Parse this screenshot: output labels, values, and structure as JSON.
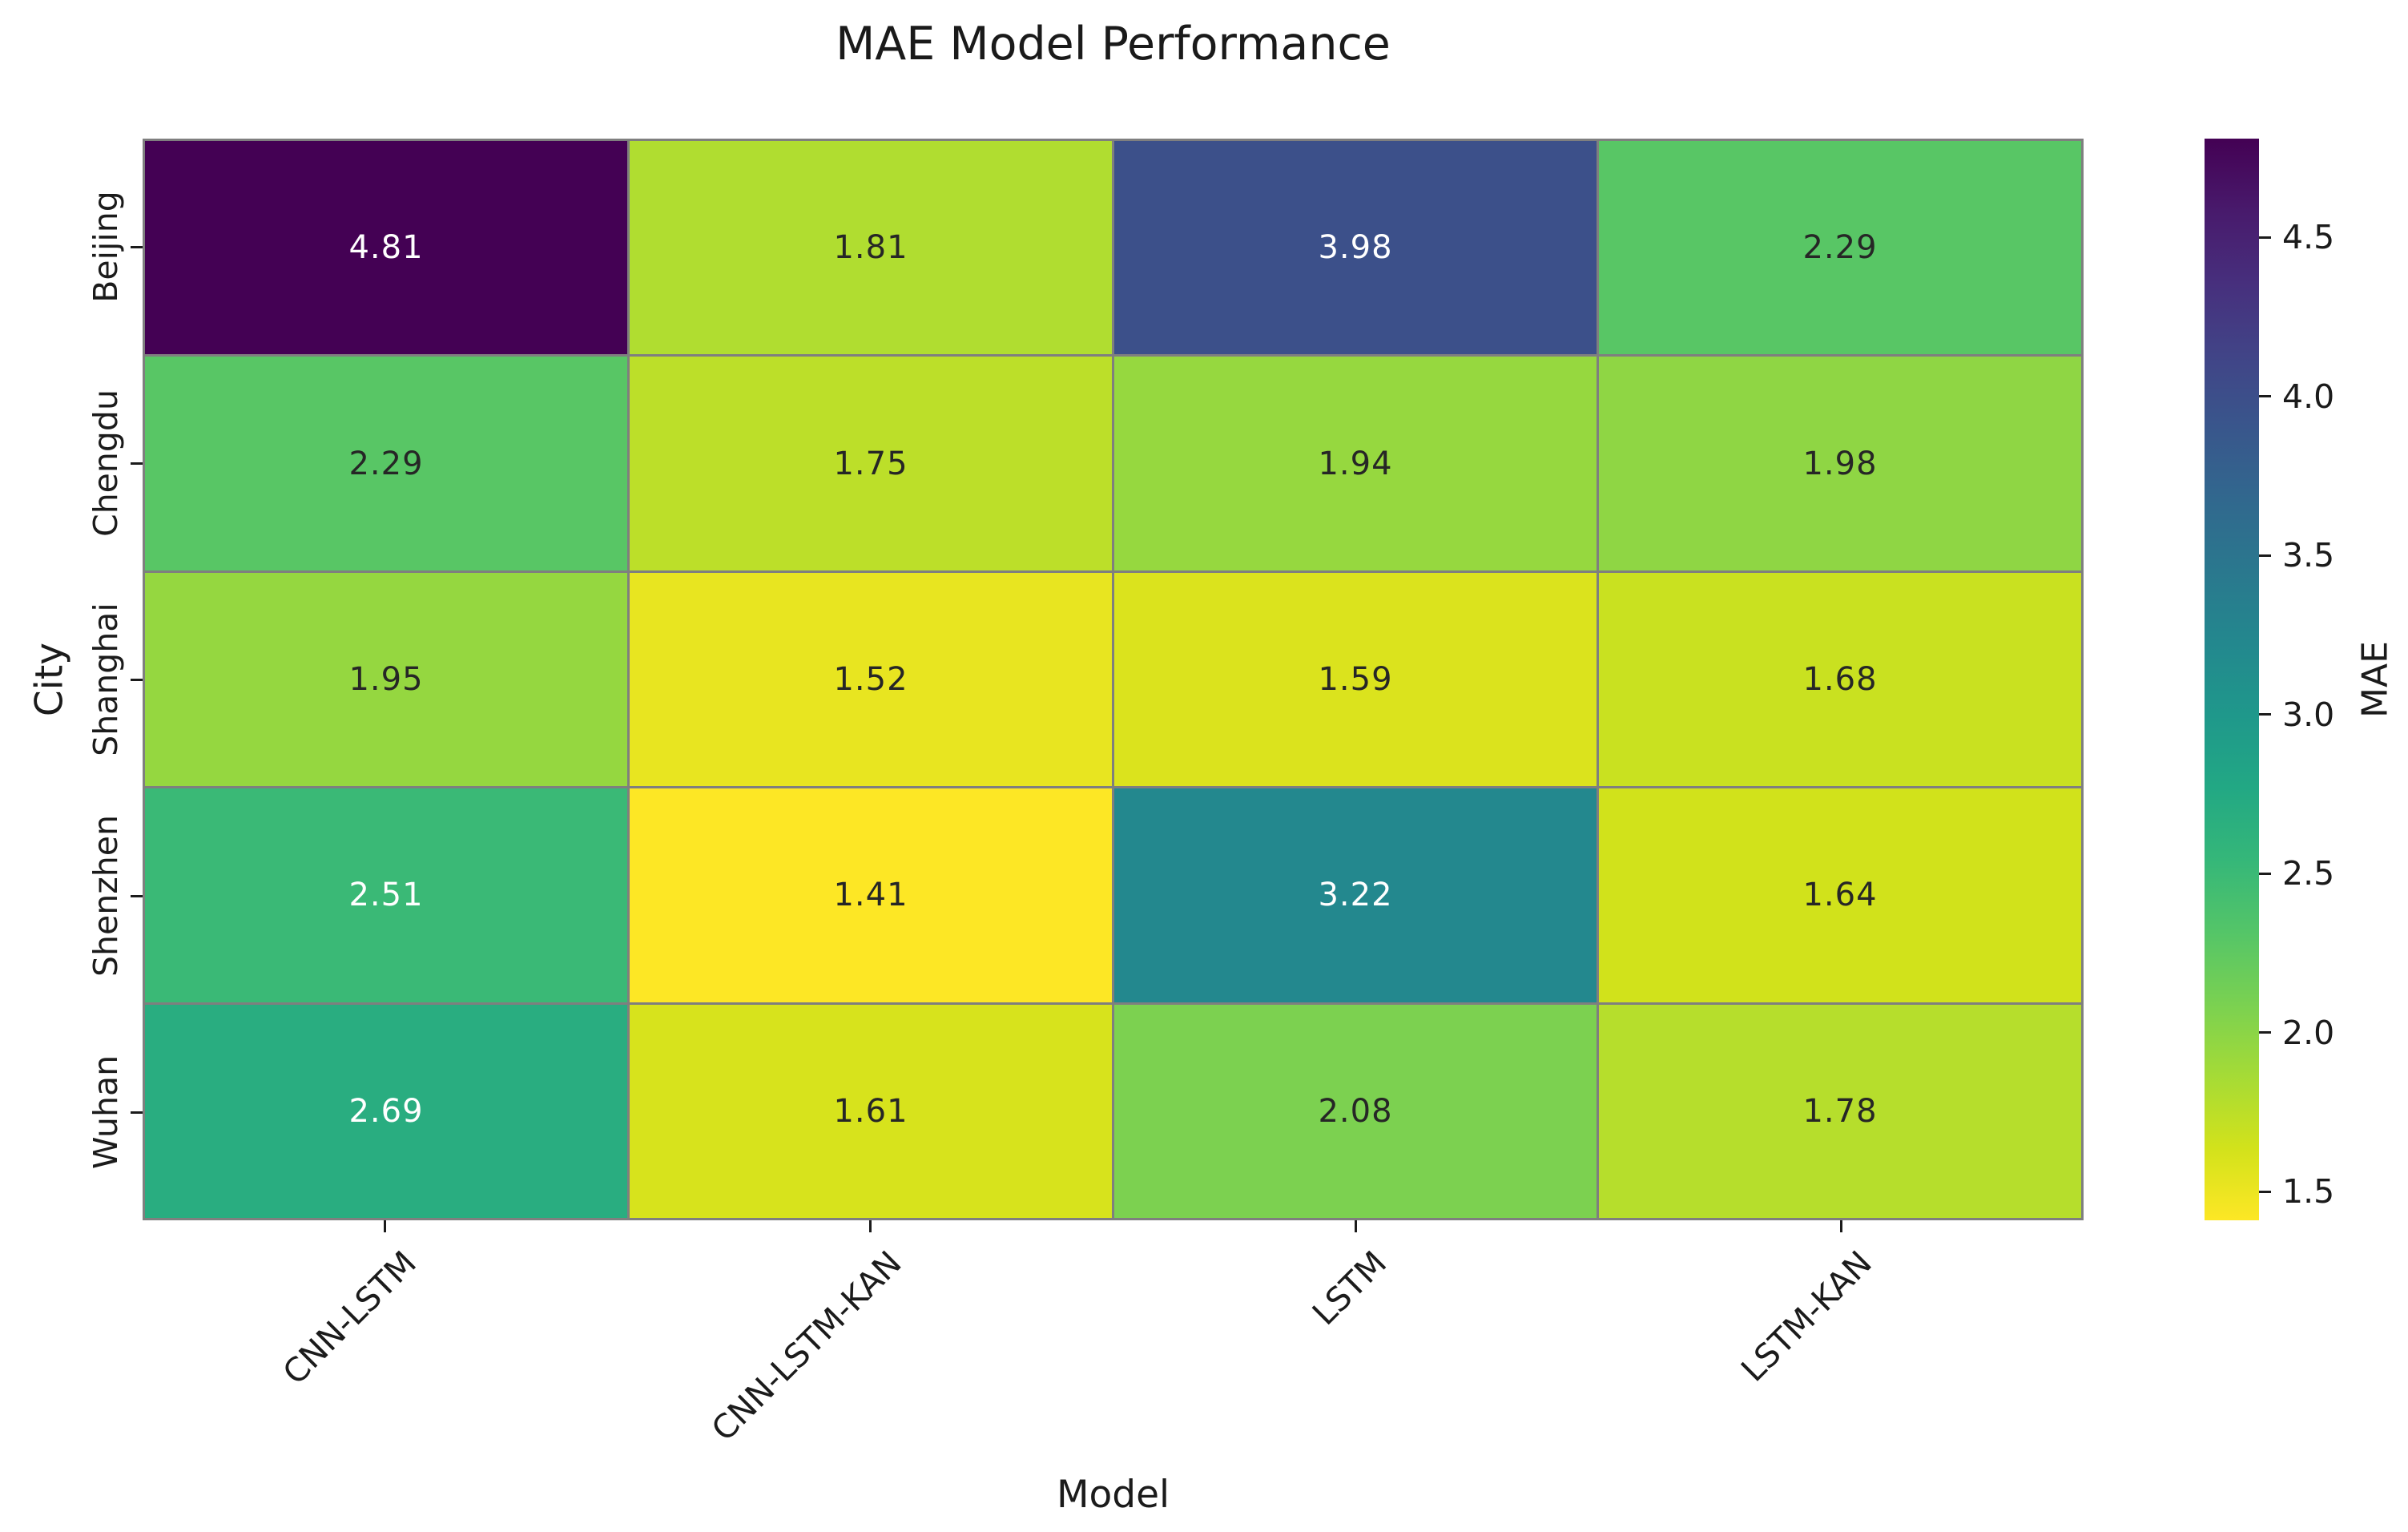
{
  "title": "MAE Model Performance",
  "chart_data": {
    "type": "heatmap",
    "title": "MAE Model Performance",
    "xlabel": "Model",
    "ylabel": "City",
    "x_categories": [
      "CNN-LSTM",
      "CNN-LSTM-KAN",
      "LSTM",
      "LSTM-KAN"
    ],
    "y_categories": [
      "Beijing",
      "Chengdu",
      "Shanghai",
      "Shenzhen",
      "Wuhan"
    ],
    "values": [
      [
        4.81,
        1.81,
        3.98,
        2.29
      ],
      [
        2.29,
        1.75,
        1.94,
        1.98
      ],
      [
        1.95,
        1.52,
        1.59,
        1.68
      ],
      [
        2.51,
        1.41,
        3.22,
        1.64
      ],
      [
        2.69,
        1.61,
        2.08,
        1.78
      ]
    ],
    "value_decimals": 2,
    "annotations": [
      [
        "4.81",
        "1.81",
        "3.98",
        "2.29"
      ],
      [
        "2.29",
        "1.75",
        "1.94",
        "1.98"
      ],
      [
        "1.95",
        "1.52",
        "1.59",
        "1.68"
      ],
      [
        "2.51",
        "1.41",
        "3.22",
        "1.64"
      ],
      [
        "2.69",
        "1.61",
        "2.08",
        "1.78"
      ]
    ],
    "colorbar": {
      "label": "MAE",
      "vmin": 1.41,
      "vmax": 4.81,
      "ticks": [
        4.5,
        4.0,
        3.5,
        3.0,
        2.5,
        2.0,
        1.5
      ],
      "tick_labels": [
        "4.5",
        "4.0",
        "3.5",
        "3.0",
        "2.5",
        "2.0",
        "1.5"
      ],
      "position": "right"
    },
    "colormap": {
      "name": "viridis_r",
      "stops": [
        "#440154",
        "#481a6c",
        "#472f7d",
        "#414487",
        "#39568c",
        "#31688e",
        "#2a788e",
        "#23888e",
        "#1f988b",
        "#22a884",
        "#35b779",
        "#54c568",
        "#7ad151",
        "#a5db36",
        "#d2e21b",
        "#fde725"
      ]
    },
    "colors": {
      "grid_line": "#7f7f7f",
      "cell_text_dark": "#262626",
      "cell_text_light": "#ffffff",
      "label_text": "#1b1b1b",
      "background": "#ffffff"
    },
    "grid": "cell-borders",
    "legend_position": "right"
  }
}
